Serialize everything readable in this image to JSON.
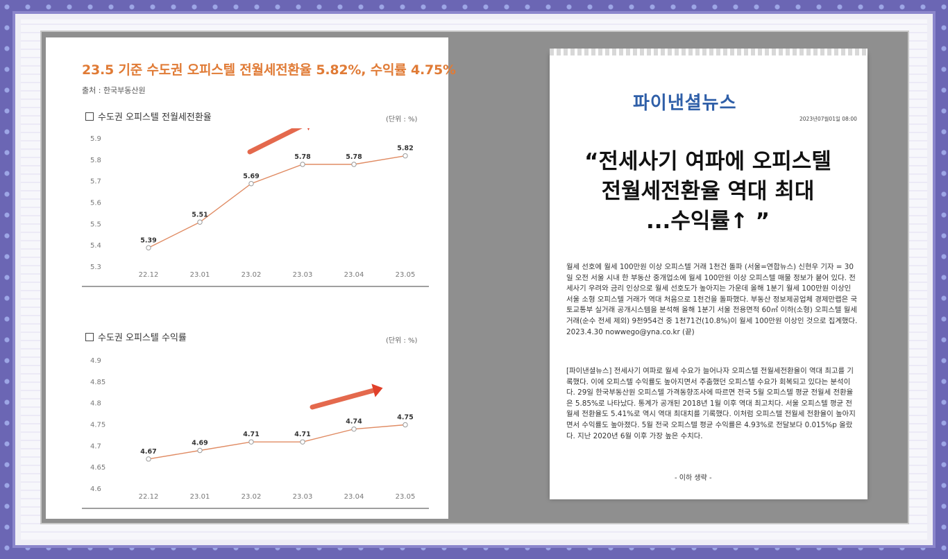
{
  "left_doc": {
    "title": "23.5 기준 수도권 오피스텔 전월세전환율 5.82%, 수익률 4.75%",
    "source": "출처 : 한국부동산원"
  },
  "chart_data": [
    {
      "type": "line",
      "title": "수도권 오피스텔 전월세전환율",
      "unit": "(단위 : %)",
      "categories": [
        "22.12",
        "23.01",
        "23.02",
        "23.03",
        "23.04",
        "23.05"
      ],
      "values": [
        5.39,
        5.51,
        5.69,
        5.78,
        5.78,
        5.82
      ],
      "ylim": [
        5.3,
        5.9
      ],
      "yticks": [
        "5.9",
        "5.8",
        "5.7",
        "5.6",
        "5.5",
        "5.4",
        "5.3"
      ],
      "color": "#e08b63"
    },
    {
      "type": "line",
      "title": "수도권 오피스텔 수익률",
      "unit": "(단위 : %)",
      "categories": [
        "22.12",
        "23.01",
        "23.02",
        "23.03",
        "23.04",
        "23.05"
      ],
      "values": [
        4.67,
        4.69,
        4.71,
        4.71,
        4.74,
        4.75
      ],
      "ylim": [
        4.6,
        4.9
      ],
      "yticks": [
        "4.9",
        "4.85",
        "4.8",
        "4.75",
        "4.7",
        "4.65",
        "4.6"
      ],
      "color": "#e08b63"
    }
  ],
  "right_doc": {
    "logo": "파이낸셜뉴스",
    "date": "2023년07월01일 08:00",
    "headline_lines": [
      "“전세사기 여파에 오피스텔",
      "전월세전환율 역대 최대",
      "...수익률↑ ”"
    ],
    "paragraph1": "월세 선호에 월세 100만원 이상 오피스텔 거래 1천건 돌파 (서울=연합뉴스) 신현우 기자 = 30일 오전 서울 시내 한 부동산 중개업소에 월세 100만원 이상 오피스텔 매물 정보가 붙어 있다. 전세사기 우려와 금리 인상으로 월세 선호도가 높아지는 가운데 올해 1분기 월세 100만원 이상인 서울 소형 오피스텔 거래가 역대 처음으로 1천건을 돌파했다. 부동산 정보제공업체 경제만랩은 국토교통부 실거래 공개시스템을 분석해 올해 1분기 서울 전용면적 60㎡ 이하(소형) 오피스텔 월세 거래(순수 전세 제외) 9천954건 중 1천71건(10.8%)이 월세 100만원 이상인 것으로 집계했다. 2023.4.30 nowwego@yna.co.kr (끝)",
    "paragraph2": "[파이낸셜뉴스] 전세사기 여파로 월세 수요가 늘어나자 오피스텔 전월세전환율이 역대 최고를 기록했다. 이에 오피스텔 수익률도 높아지면서 주춤했던 오피스텔 수요가 회복되고 있다는 분석이다. 29일 한국부동산원 오피스텔 가격동향조사에 따르면 전국 5월 오피스텔 평균 전월세 전환율은 5.85%로 나타났다. 통계가 공개된 2018년 1월 이후 역대 최고치다. 서울 오피스텔 평균 전월세 전환율도 5.41%로 역시 역대 최대치를 기록했다. 이처럼 오피스텔 전월세 전환율이 높아지면서 수익률도 높아졌다. 5월 전국 오피스텔 평균 수익률은 4.93%로 전달보다 0.015%p 올랐다. 지난 2020년 6월 이후 가장 높은 수치다.",
    "ending": "- 이하 생략 -"
  }
}
